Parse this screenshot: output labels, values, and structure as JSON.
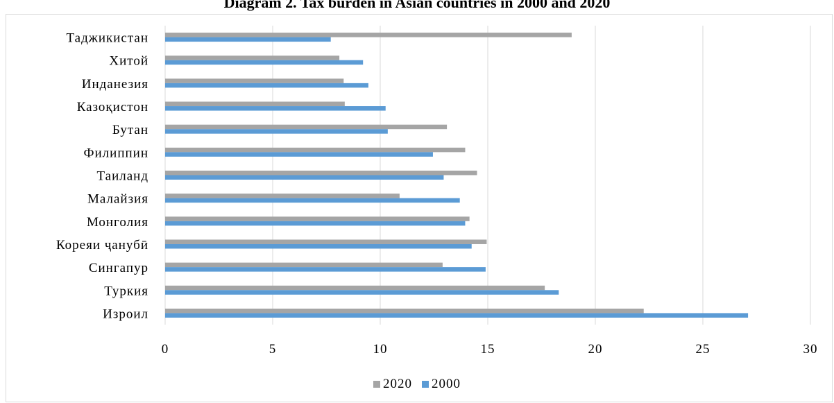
{
  "chart_data": {
    "type": "bar",
    "orientation": "horizontal",
    "title": "Diagram 2. Tax burden in Asian countries in 2000 and 2020",
    "categories": [
      "Таджикистан",
      "Хитой",
      "Инданезия",
      "Казоқистон",
      "Бутан",
      "Филиппин",
      "Таиланд",
      "Малайзия",
      "Монголия",
      "Кореяи ҷанубӣ",
      "Сингапур",
      "Туркия",
      "Изроил"
    ],
    "series": [
      {
        "name": "2020",
        "color": "#a5a5a5",
        "values": [
          18.9,
          8.1,
          8.3,
          8.35,
          13.1,
          13.95,
          14.5,
          10.9,
          14.15,
          14.95,
          12.9,
          17.65,
          22.25
        ]
      },
      {
        "name": "2000",
        "color": "#5b9bd5",
        "values": [
          7.7,
          9.2,
          9.45,
          10.25,
          10.35,
          12.45,
          12.95,
          13.7,
          13.95,
          14.25,
          14.9,
          18.3,
          27.1
        ]
      }
    ],
    "xlim": [
      0,
      30
    ],
    "xticks": [
      "0",
      "5",
      "10",
      "15",
      "20",
      "25",
      "30"
    ],
    "grid": true,
    "legend_position": "bottom"
  }
}
